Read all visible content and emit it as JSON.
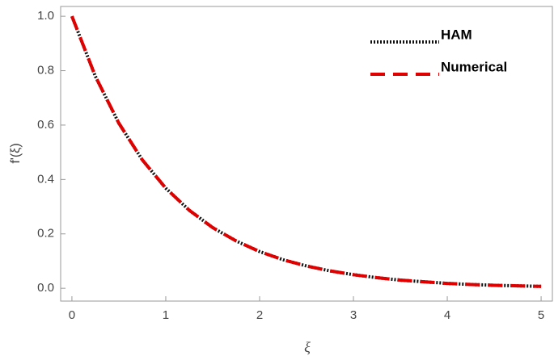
{
  "chart_data": {
    "type": "line",
    "x_label": "ξ",
    "y_label": "f'(ξ)",
    "x": [
      0,
      0.25,
      0.5,
      0.75,
      1,
      1.25,
      1.5,
      1.75,
      2,
      2.25,
      2.5,
      2.75,
      3,
      3.25,
      3.5,
      3.75,
      4,
      4.25,
      4.5,
      4.75,
      5
    ],
    "series": [
      {
        "name": "HAM",
        "color": "#111111",
        "style": "dotted",
        "values": [
          1,
          0.779,
          0.607,
          0.472,
          0.368,
          0.287,
          0.223,
          0.174,
          0.135,
          0.105,
          0.082,
          0.064,
          0.05,
          0.039,
          0.03,
          0.024,
          0.018,
          0.014,
          0.011,
          0.009,
          0.007
        ]
      },
      {
        "name": "Numerical",
        "color": "#e00000",
        "style": "dashed",
        "values": [
          1,
          0.779,
          0.607,
          0.472,
          0.368,
          0.287,
          0.223,
          0.174,
          0.135,
          0.105,
          0.082,
          0.064,
          0.05,
          0.039,
          0.03,
          0.024,
          0.018,
          0.014,
          0.011,
          0.009,
          0.007
        ]
      }
    ],
    "xlim": [
      -0.12,
      5.12
    ],
    "ylim": [
      -0.047,
      1.036
    ],
    "xticks": [
      0,
      1,
      2,
      3,
      4,
      5
    ],
    "yticks": [
      {
        "value": 0,
        "label": "0.0"
      },
      {
        "value": 0.2,
        "label": "0.2"
      },
      {
        "value": 0.4,
        "label": "0.4"
      },
      {
        "value": 0.6,
        "label": "0.6"
      },
      {
        "value": 0.8,
        "label": "0.8"
      },
      {
        "value": 1,
        "label": "1.0"
      }
    ],
    "legend": "top-right"
  }
}
